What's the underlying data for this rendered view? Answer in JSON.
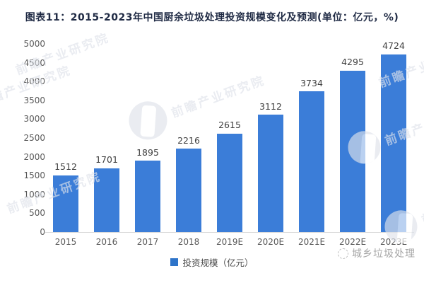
{
  "title": "图表11：2015-2023年中国厨余垃圾处理投资规模变化及预测(单位：亿元，%)",
  "chart_data": {
    "type": "bar",
    "categories": [
      "2015",
      "2016",
      "2017",
      "2018",
      "2019E",
      "2020E",
      "2021E",
      "2022E",
      "2023E"
    ],
    "values": [
      1512,
      1701,
      1895,
      2216,
      2615,
      3112,
      3734,
      4295,
      4724
    ],
    "series_name": "投资规模（亿元）",
    "title": "2015-2023年中国厨余垃圾处理投资规模变化及预测",
    "xlabel": "",
    "ylabel": "",
    "ylim": [
      0,
      5000
    ],
    "yticks": [
      0,
      500,
      1000,
      1500,
      2000,
      2500,
      3000,
      3500,
      4000,
      4500,
      5000
    ],
    "grid": false,
    "legend_position": "bottom",
    "bar_color": "#3B7DD8",
    "value_labels": true
  },
  "legend": {
    "label": "投资规模（亿元）"
  },
  "watermark": {
    "brand": "前瞻产业研究院",
    "stamp": "城乡垃圾处理"
  },
  "colors": {
    "bar": "#3B7DD8",
    "title": "#1F2A44",
    "axis_label": "#595959",
    "value_label": "#404040",
    "axis_line": "#D9D9D9",
    "stamp": "#909090",
    "watermark": "#DFE3EB"
  }
}
